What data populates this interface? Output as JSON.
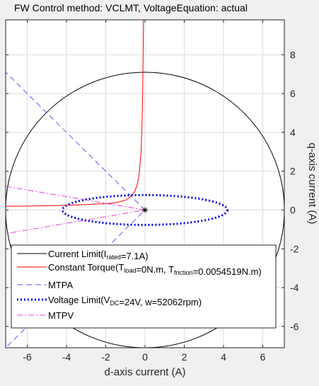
{
  "chart_data": {
    "type": "line",
    "title": "FW Control method: VCLMT, VoltageEquation: actual",
    "xlabel": "d-axis current (A)",
    "ylabel": "q-axis current (A)",
    "xlim": [
      -7.1,
      7.1
    ],
    "ylim": [
      -7.1,
      9.8
    ],
    "xticks": [
      -6,
      -4,
      -2,
      0,
      2,
      4,
      6
    ],
    "yticks": [
      -6,
      -4,
      -2,
      0,
      2,
      4,
      6,
      8
    ],
    "grid": true,
    "legend_position": "bottom-left",
    "series": [
      {
        "name": "Current Limit",
        "name_sub": "rated",
        "name_suffix": "=7.1A)",
        "name_prefix": "Current Limit(I",
        "kind": "circle",
        "center": [
          0,
          0
        ],
        "radius": 7.1,
        "color": "#000000",
        "style": "solid"
      },
      {
        "name": "Constant Torque",
        "name_prefix": "Constant Torque(T",
        "name_sub": "load",
        "name_mid": "=0N.m, T",
        "name_sub2": "friction",
        "name_suffix": "=0.0054519N.m)",
        "kind": "points",
        "color": "#ff0000",
        "style": "solid",
        "points": [
          [
            -7.1,
            0.19
          ],
          [
            -6,
            0.2
          ],
          [
            -5,
            0.22
          ],
          [
            -4,
            0.24
          ],
          [
            -3,
            0.28
          ],
          [
            -2,
            0.33
          ],
          [
            -1.5,
            0.38
          ],
          [
            -1,
            0.5
          ],
          [
            -0.7,
            0.7
          ],
          [
            -0.5,
            1.0
          ],
          [
            -0.4,
            1.3
          ],
          [
            -0.3,
            1.8
          ],
          [
            -0.2,
            3.0
          ],
          [
            -0.15,
            4.5
          ],
          [
            -0.12,
            6.0
          ],
          [
            -0.1,
            7.5
          ],
          [
            -0.08,
            9.8
          ]
        ]
      },
      {
        "name": "MTPA",
        "name_prefix": "MTPA",
        "kind": "points",
        "color": "#5a5aff",
        "style": "dashed",
        "points": [
          [
            -7.2,
            7.2
          ],
          [
            0,
            0
          ],
          [
            -7.2,
            -7.2
          ]
        ]
      },
      {
        "name": "Voltage Limit",
        "name_prefix": "Voltage Limit(V",
        "name_sub": "DC",
        "name_suffix": "=24V, w=52062rpm)",
        "kind": "ellipse",
        "center": [
          0,
          0
        ],
        "rx": 4.2,
        "ry": 0.77,
        "color": "#0000dd",
        "style": "dotted"
      },
      {
        "name": "MTPV",
        "name_prefix": "MTPV",
        "kind": "points",
        "color": "#e040e0",
        "style": "dashdot",
        "points": [
          [
            -7.1,
            1.22
          ],
          [
            0,
            0
          ],
          [
            -7.1,
            -1.22
          ]
        ]
      }
    ],
    "marker": {
      "x": 0,
      "y": 0,
      "symbol": "*"
    }
  }
}
